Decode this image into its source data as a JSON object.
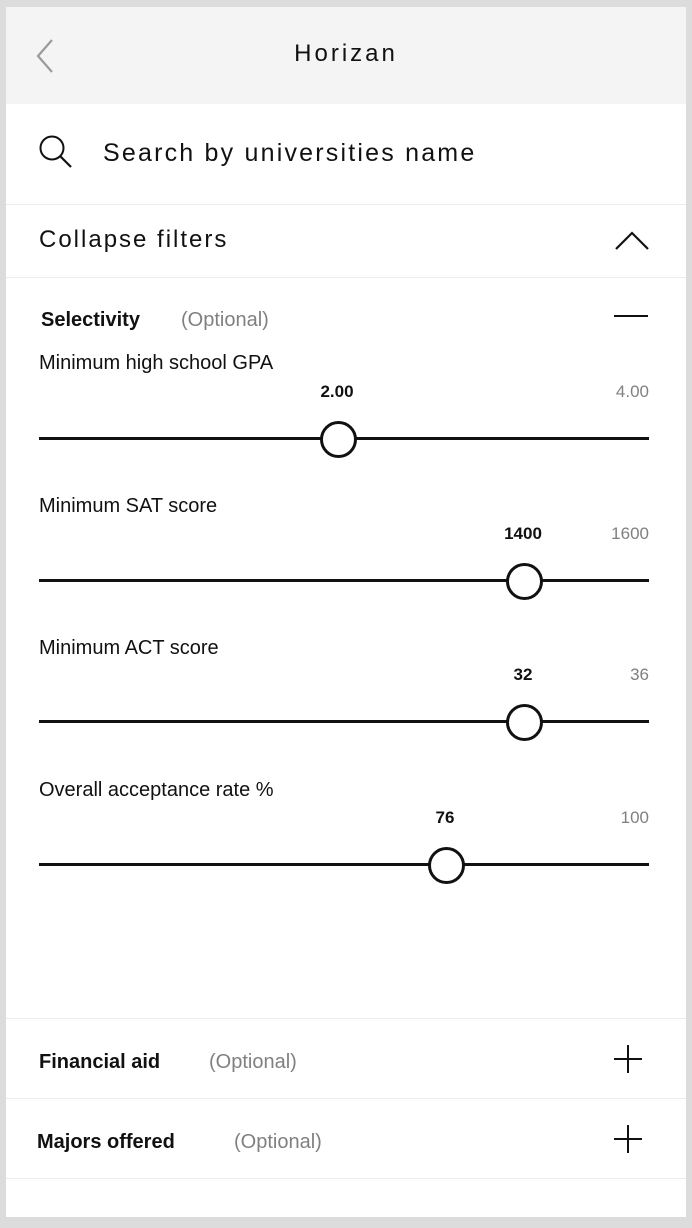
{
  "header": {
    "title": "Horizan",
    "back_icon": "chevron-left-icon"
  },
  "search": {
    "placeholder": "Search by universities name",
    "value": ""
  },
  "filters": {
    "collapse_label": "Collapse filters"
  },
  "selectivity": {
    "title": "Selectivity",
    "optional": "(Optional)",
    "sliders": [
      {
        "label": "Minimum high school GPA",
        "value": "2.00",
        "max": "4.00",
        "fraction": 0.488
      },
      {
        "label": "Minimum SAT score",
        "value": "1400",
        "max": "1600",
        "fraction": 0.793
      },
      {
        "label": "Minimum ACT score",
        "value": "32",
        "max": "36",
        "fraction": 0.793
      },
      {
        "label": "Overall acceptance rate %",
        "value": "76",
        "max": "100",
        "fraction": 0.665
      }
    ]
  },
  "financial_aid": {
    "title": "Financial aid",
    "optional": "(Optional)"
  },
  "majors": {
    "title": "Majors offered",
    "optional": "(Optional)"
  },
  "colors": {
    "accent": "#111111",
    "muted": "#808080",
    "header_bg": "#f4f4f5"
  }
}
